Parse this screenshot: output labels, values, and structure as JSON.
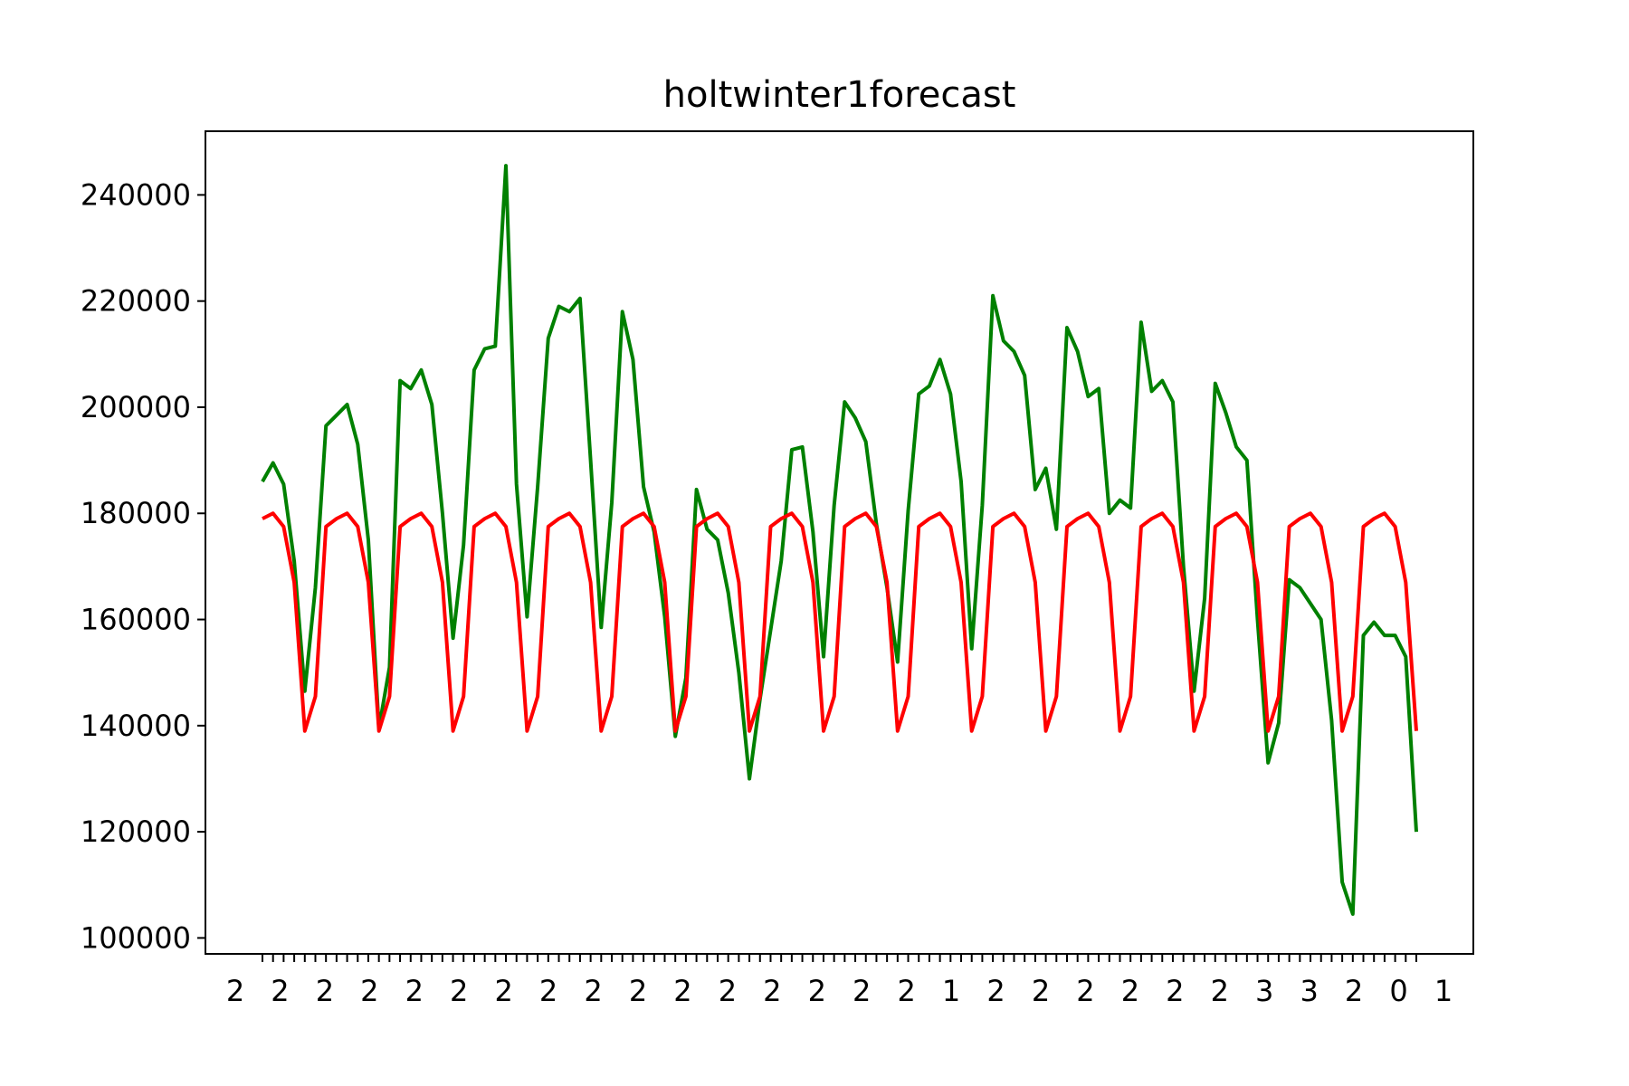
{
  "chart_data": {
    "type": "line",
    "title": "holtwinter1forecast",
    "xlabel": "",
    "ylabel": "",
    "ylim": [
      97000,
      252000
    ],
    "yticks": [
      100000,
      120000,
      140000,
      160000,
      180000,
      200000,
      220000,
      240000
    ],
    "ytick_labels": [
      "100000",
      "120000",
      "140000",
      "160000",
      "180000",
      "200000",
      "220000",
      "240000"
    ],
    "x_tick_count": 110,
    "xtick_labels_visible": [
      "2",
      "2",
      "2",
      "2",
      "2",
      "2",
      "2",
      "2",
      "2",
      "2",
      "2",
      "2",
      "2",
      "2",
      "2",
      "2",
      "1",
      "2",
      "2",
      "2",
      "2",
      "2",
      "2",
      "3",
      "3",
      "2",
      "0",
      "1"
    ],
    "grid": false,
    "legend": "none",
    "series": [
      {
        "color": "#008000",
        "values": [
          186000,
          189500,
          185500,
          171000,
          146500,
          166000,
          196500,
          198500,
          200500,
          193000,
          175000,
          139500,
          151000,
          205000,
          203500,
          207000,
          200500,
          180000,
          156500,
          174000,
          207000,
          211000,
          211500,
          245500,
          185500,
          160500,
          185000,
          213000,
          219000,
          218000,
          220500,
          190000,
          158500,
          182000,
          218000,
          209000,
          185000,
          176500,
          160500,
          138000,
          149000,
          184500,
          177000,
          175000,
          165000,
          150000,
          130000,
          145000,
          158000,
          171000,
          192000,
          192500,
          176500,
          153000,
          181500,
          201000,
          198000,
          193500,
          178000,
          166000,
          152000,
          180500,
          202500,
          204000,
          209000,
          202500,
          186000,
          154500,
          181500,
          221000,
          212500,
          210500,
          206000,
          184500,
          188500,
          177000,
          215000,
          210500,
          202000,
          203500,
          180000,
          182500,
          181000,
          216000,
          203000,
          205000,
          201000,
          170000,
          146500,
          164000,
          204500,
          199000,
          192500,
          190000,
          160000,
          133000,
          140500,
          167500,
          166000,
          163000,
          160000,
          141000,
          110500,
          104500,
          157000,
          159500,
          157000,
          157000,
          153000,
          120000
        ]
      },
      {
        "color": "#ff0000",
        "values": [
          179000,
          180000,
          177500,
          167000,
          139000,
          145500,
          177500,
          179000,
          180000,
          177500,
          167000,
          139000,
          145500,
          177500,
          179000,
          180000,
          177500,
          167000,
          139000,
          145500,
          177500,
          179000,
          180000,
          177500,
          167000,
          139000,
          145500,
          177500,
          179000,
          180000,
          177500,
          167000,
          139000,
          145500,
          177500,
          179000,
          180000,
          177500,
          167000,
          139000,
          145500,
          177500,
          179000,
          180000,
          177500,
          167000,
          139000,
          145500,
          177500,
          179000,
          180000,
          177500,
          167000,
          139000,
          145500,
          177500,
          179000,
          180000,
          177500,
          167000,
          139000,
          145500,
          177500,
          179000,
          180000,
          177500,
          167000,
          139000,
          145500,
          177500,
          179000,
          180000,
          177500,
          167000,
          139000,
          145500,
          177500,
          179000,
          180000,
          177500,
          167000,
          139000,
          145500,
          177500,
          179000,
          180000,
          177500,
          167000,
          139000,
          145500,
          177500,
          179000,
          180000,
          177500,
          167000,
          139000,
          145500,
          177500,
          179000,
          180000,
          177500,
          167000,
          139000,
          145500,
          177500,
          179000,
          180000,
          177500,
          167000,
          139000
        ]
      }
    ]
  }
}
